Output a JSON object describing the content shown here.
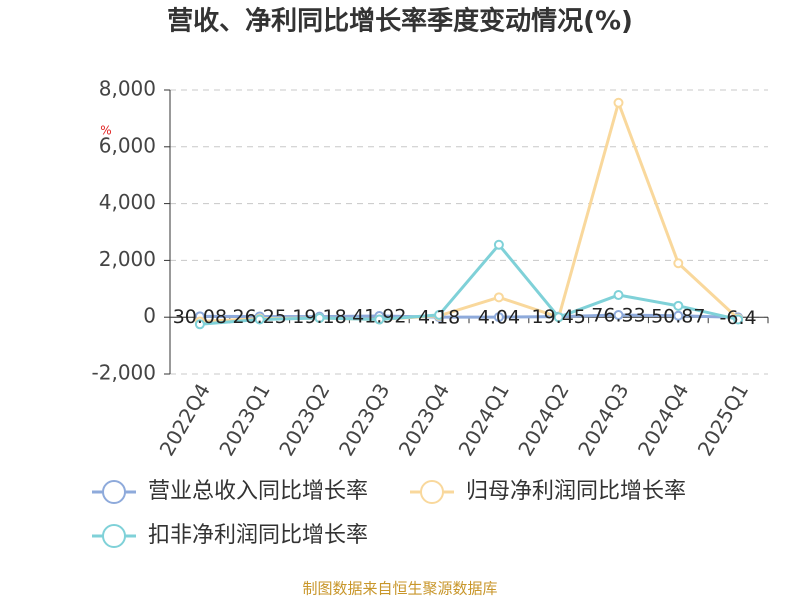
{
  "chart_data": {
    "type": "line",
    "title": "营收、净利同比增长率季度变动情况(%)",
    "y_unit": "%",
    "source": "制图数据来自恒生聚源数据库",
    "categories": [
      "2022Q4",
      "2023Q1",
      "2023Q2",
      "2023Q3",
      "2023Q4",
      "2024Q1",
      "2024Q2",
      "2024Q3",
      "2024Q4",
      "2025Q1"
    ],
    "series": [
      {
        "name": "营业总收入同比增长率",
        "color": "#8eaadb",
        "values": [
          30.08,
          26.25,
          19.18,
          41.92,
          4.18,
          4.04,
          19.45,
          76.33,
          50.87,
          -6.4
        ],
        "show_labels": true
      },
      {
        "name": "归母净利润同比增长率",
        "color": "#f9d89c",
        "values": [
          -150,
          -50,
          -30,
          -80,
          50,
          700,
          0,
          7550,
          1900,
          -50
        ]
      },
      {
        "name": "扣非净利润同比增长率",
        "color": "#7fd1d8",
        "values": [
          -250,
          -80,
          -30,
          -80,
          80,
          2550,
          0,
          780,
          400,
          -80
        ]
      }
    ],
    "ylim": [
      -2000,
      8000
    ],
    "yticks": [
      {
        "value": -2000,
        "label": "-2,000"
      },
      0,
      {
        "value": 2000,
        "label": "2,000"
      },
      {
        "value": 4000,
        "label": "4,000"
      },
      {
        "value": 6000,
        "label": "6,000"
      },
      {
        "value": 8000,
        "label": "8,000"
      }
    ],
    "grid": true
  }
}
